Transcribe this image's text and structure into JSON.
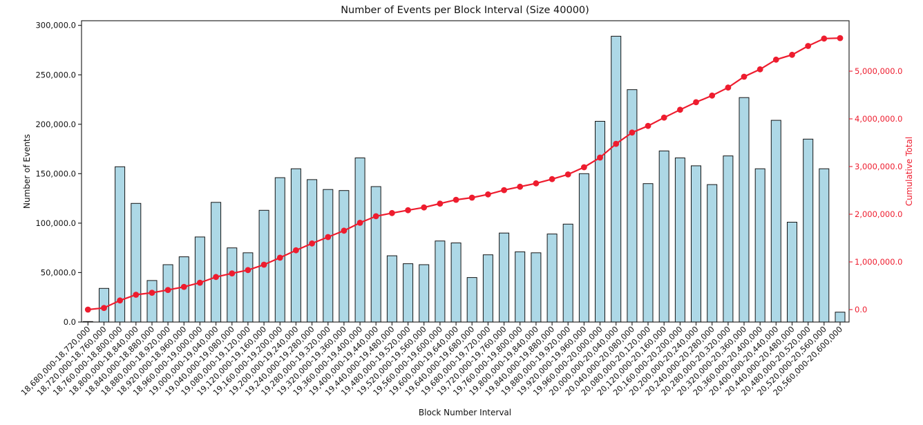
{
  "chart_data": {
    "type": "bar",
    "title": "Number of Events per Block Interval (Size 40000)",
    "xlabel": "Block Number Interval",
    "ylabel_left": "Number of Events",
    "ylabel_right": "Cumulative Total",
    "grid": false,
    "legend_position": "none",
    "categories": [
      "18,680,000-18,720,000",
      "18,720,000-18,760,000",
      "18,760,000-18,800,000",
      "18,800,000-18,840,000",
      "18,840,000-18,880,000",
      "18,880,000-18,920,000",
      "18,920,000-18,960,000",
      "18,960,000-19,000,000",
      "19,000,000-19,040,000",
      "19,040,000-19,080,000",
      "19,080,000-19,120,000",
      "19,120,000-19,160,000",
      "19,160,000-19,200,000",
      "19,200,000-19,240,000",
      "19,240,000-19,280,000",
      "19,280,000-19,320,000",
      "19,320,000-19,360,000",
      "19,360,000-19,400,000",
      "19,400,000-19,440,000",
      "19,440,000-19,480,000",
      "19,480,000-19,520,000",
      "19,520,000-19,560,000",
      "19,560,000-19,600,000",
      "19,600,000-19,640,000",
      "19,640,000-19,680,000",
      "19,680,000-19,720,000",
      "19,720,000-19,760,000",
      "19,760,000-19,800,000",
      "19,800,000-19,840,000",
      "19,840,000-19,880,000",
      "19,880,000-19,920,000",
      "19,920,000-19,960,000",
      "19,960,000-20,000,000",
      "20,000,000-20,040,000",
      "20,040,000-20,080,000",
      "20,080,000-20,120,000",
      "20,120,000-20,160,000",
      "20,160,000-20,200,000",
      "20,200,000-20,240,000",
      "20,240,000-20,280,000",
      "20,280,000-20,320,000",
      "20,320,000-20,360,000",
      "20,360,000-20,400,000",
      "20,400,000-20,440,000",
      "20,440,000-20,480,000",
      "20,480,000-20,520,000",
      "20,520,000-20,560,000",
      "20,560,000-20,600,000"
    ],
    "series": [
      {
        "name": "Number of Events",
        "type": "bar",
        "axis": "left",
        "values": [
          500,
          34000,
          157000,
          120000,
          42000,
          58000,
          66000,
          86000,
          121000,
          75000,
          70000,
          113000,
          146000,
          155000,
          144000,
          134000,
          133000,
          166000,
          137000,
          67000,
          59000,
          58000,
          82000,
          80000,
          45000,
          68000,
          90000,
          71000,
          70000,
          89000,
          99000,
          150000,
          203000,
          289000,
          235000,
          140000,
          173000,
          166000,
          158000,
          139000,
          168000,
          227000,
          155000,
          204000,
          101000,
          185000,
          155000,
          10000
        ]
      },
      {
        "name": "Cumulative Total",
        "type": "line",
        "axis": "right",
        "values": [
          500,
          34500,
          191500,
          311500,
          353500,
          411500,
          477500,
          563500,
          684500,
          759500,
          829500,
          942500,
          1088500,
          1243500,
          1387500,
          1521500,
          1654500,
          1820500,
          1957500,
          2024500,
          2083500,
          2141500,
          2223500,
          2303500,
          2348500,
          2416500,
          2506500,
          2577500,
          2647500,
          2736500,
          2835500,
          2985500,
          3188500,
          3477500,
          3712500,
          3852500,
          4025500,
          4191500,
          4349500,
          4488500,
          4656500,
          4883500,
          5038500,
          5242500,
          5343500,
          5528500,
          5683500,
          5693500
        ]
      }
    ],
    "left_axis": {
      "range": [
        0,
        305000
      ],
      "tick_values": [
        0,
        50000,
        100000,
        150000,
        200000,
        250000,
        300000
      ],
      "tick_labels": [
        "0.0",
        "50,000.0",
        "100,000.0",
        "150,000.0",
        "200,000.0",
        "250,000.0",
        "300,000.0"
      ]
    },
    "right_axis": {
      "range": [
        -290000,
        6030000
      ],
      "tick_values": [
        0,
        1000000,
        2000000,
        3000000,
        4000000,
        5000000
      ],
      "tick_labels": [
        "0.0",
        "1,000,000.0",
        "2,000,000.0",
        "3,000,000.0",
        "4,000,000.0",
        "5,000,000.0"
      ]
    }
  },
  "colors": {
    "background": "#ffffff",
    "bar_fill": "#add8e6",
    "bar_edge": "#141414",
    "line": "#ee1c2e",
    "right_axis_text": "#ee1c2e",
    "text": "#111111"
  }
}
